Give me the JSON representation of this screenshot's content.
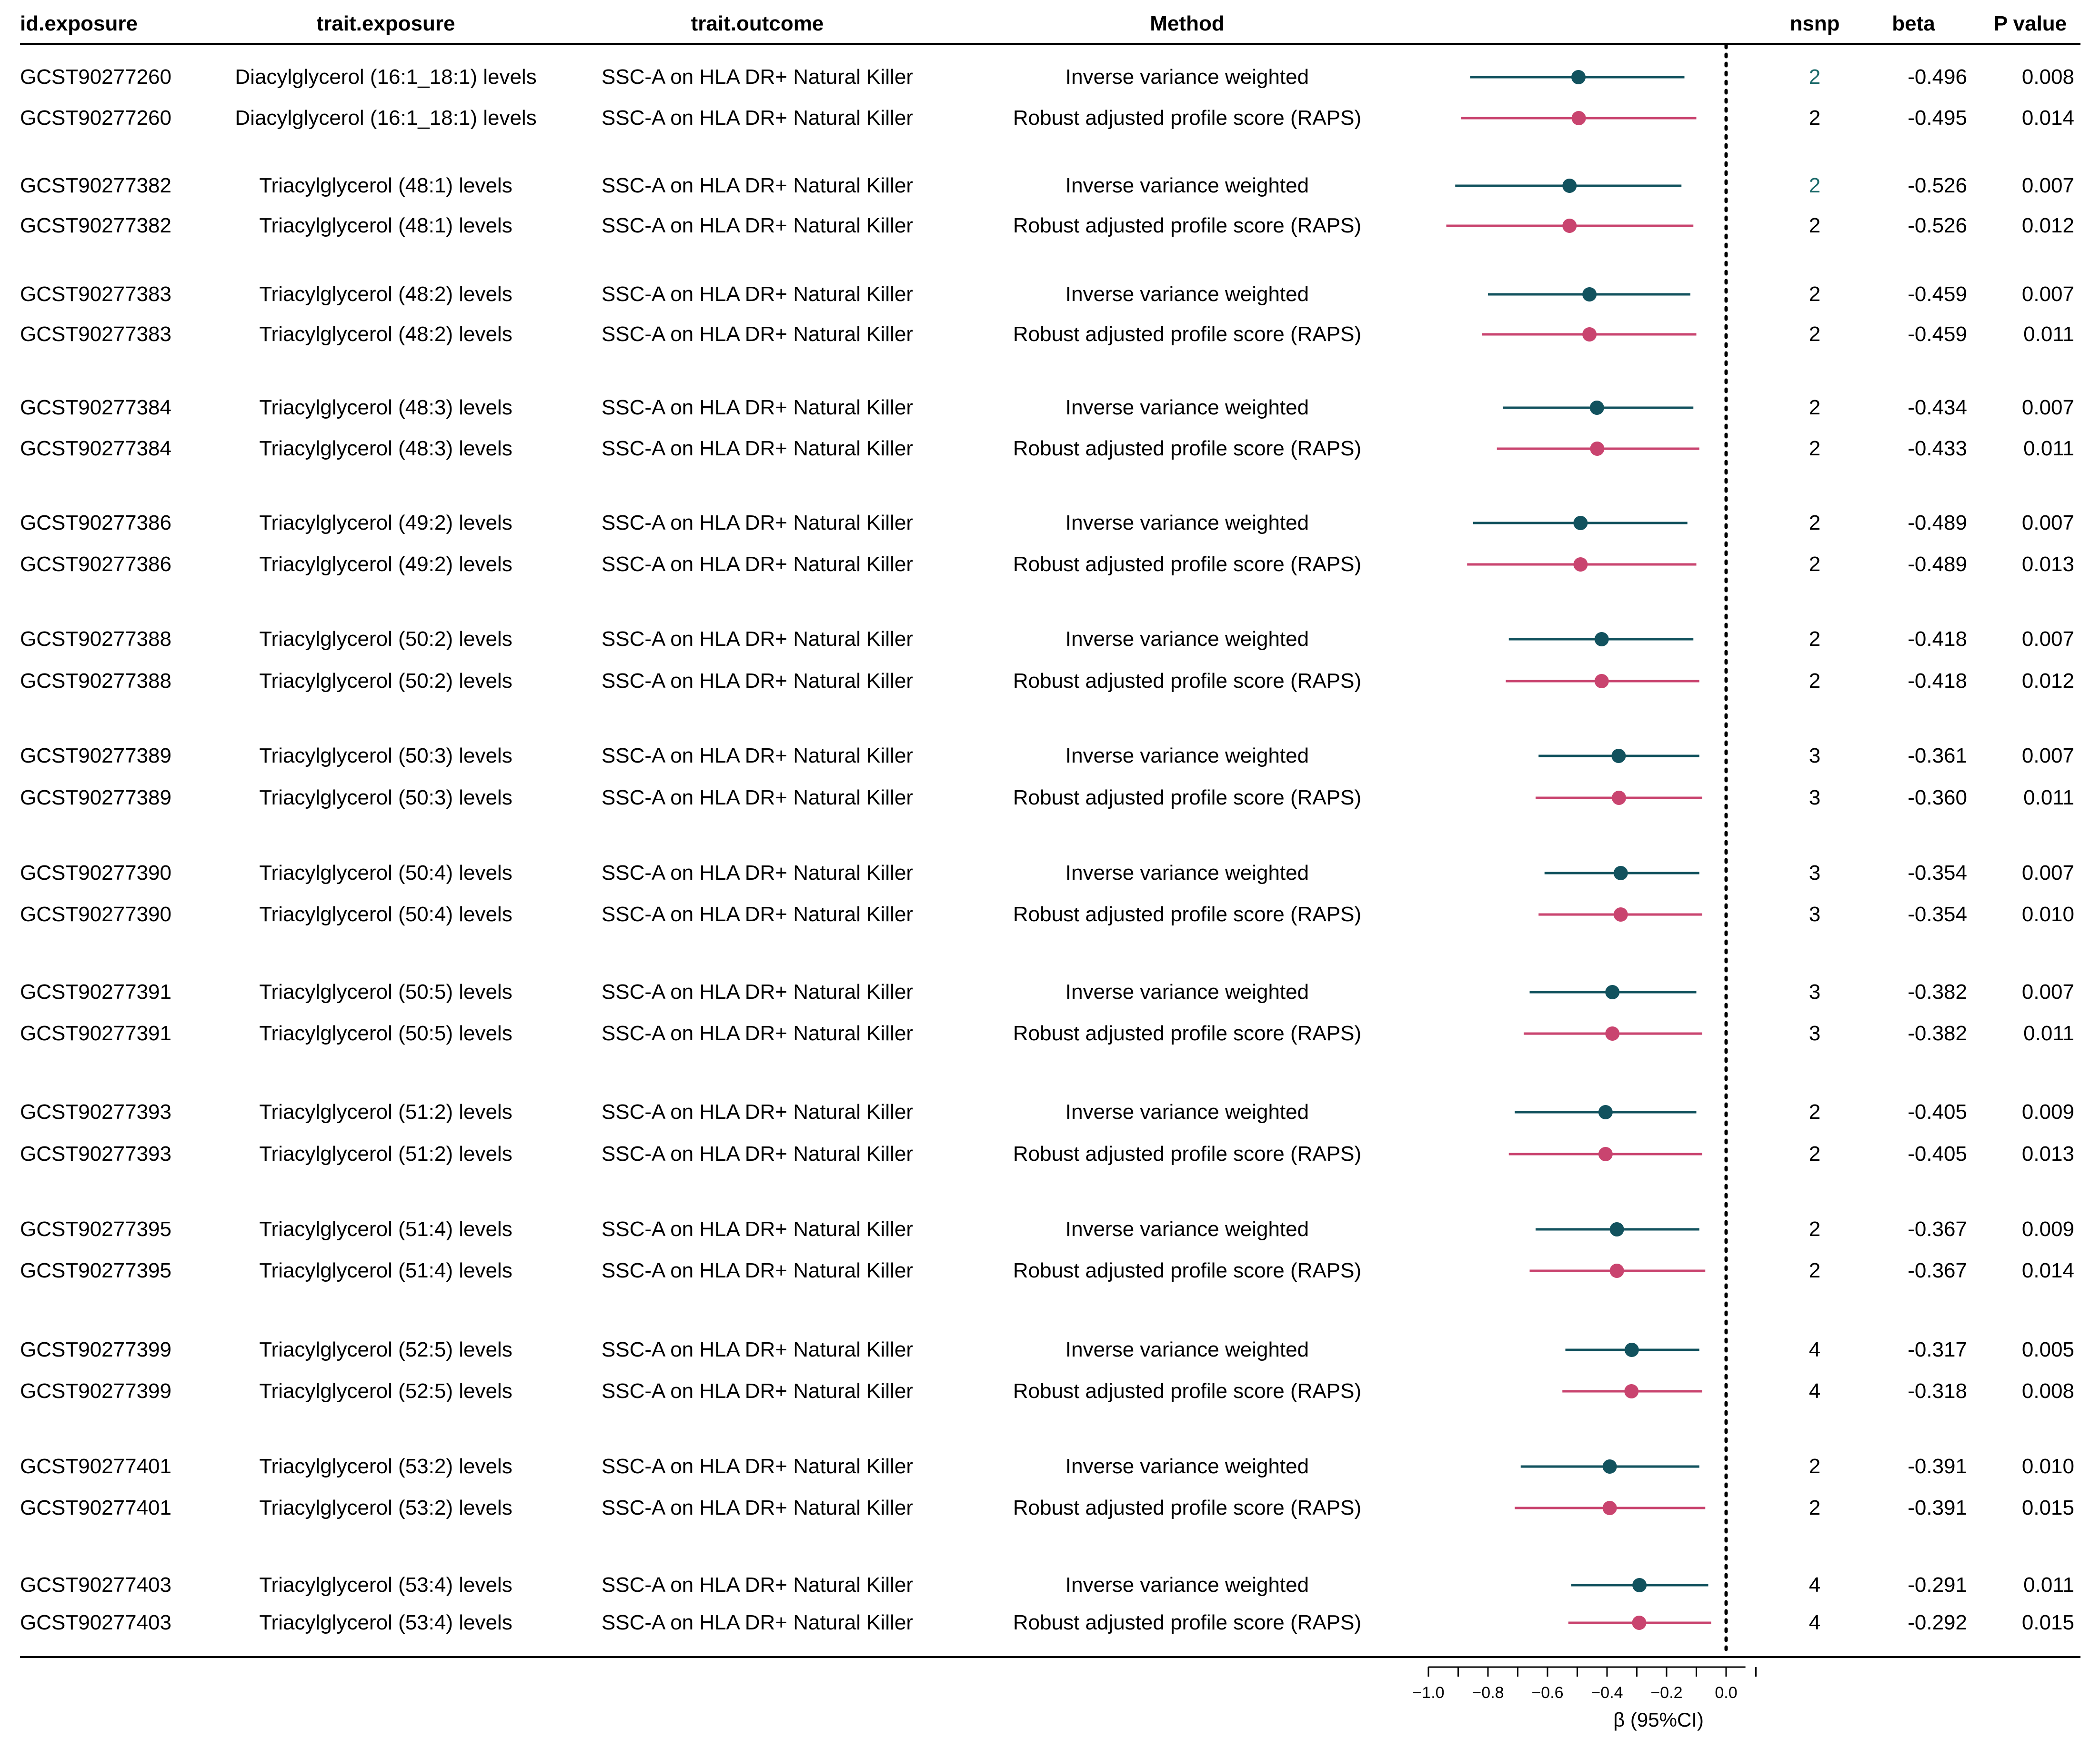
{
  "columns": {
    "id": "id.exposure",
    "exposure": "trait.exposure",
    "outcome": "trait.outcome",
    "method": "Method",
    "nsnp": "nsnp",
    "beta": "beta",
    "p": "P value"
  },
  "colors": {
    "ivw": "#12525e",
    "raps": "#c9446f",
    "nsnp_highlight": "#1e6b6b",
    "text": "#000000"
  },
  "rows": [
    {
      "id": "GCST90277260",
      "exposure": "Diacylglycerol (16:1_18:1) levels",
      "outcome": "SSC-A on HLA DR+ Natural Killer",
      "method": "Inverse variance weighted",
      "nsnp": "2",
      "beta": "-0.496",
      "p": "0.008",
      "ci": [
        -0.86,
        -0.14
      ],
      "series": "ivw",
      "highlight_nsnp": true
    },
    {
      "id": "GCST90277260",
      "exposure": "Diacylglycerol (16:1_18:1) levels",
      "outcome": "SSC-A on HLA DR+ Natural Killer",
      "method": "Robust adjusted profile score (RAPS)",
      "nsnp": "2",
      "beta": "-0.495",
      "p": "0.014",
      "ci": [
        -0.89,
        -0.1
      ],
      "series": "raps",
      "highlight_nsnp": false
    },
    {
      "id": "GCST90277382",
      "exposure": "Triacylglycerol (48:1) levels",
      "outcome": "SSC-A on HLA DR+ Natural Killer",
      "method": "Inverse variance weighted",
      "nsnp": "2",
      "beta": "-0.526",
      "p": "0.007",
      "ci": [
        -0.91,
        -0.15
      ],
      "series": "ivw",
      "highlight_nsnp": true
    },
    {
      "id": "GCST90277382",
      "exposure": "Triacylglycerol (48:1) levels",
      "outcome": "SSC-A on HLA DR+ Natural Killer",
      "method": "Robust adjusted profile score (RAPS)",
      "nsnp": "2",
      "beta": "-0.526",
      "p": "0.012",
      "ci": [
        -0.94,
        -0.11
      ],
      "series": "raps",
      "highlight_nsnp": false
    },
    {
      "id": "GCST90277383",
      "exposure": "Triacylglycerol (48:2) levels",
      "outcome": "SSC-A on HLA DR+ Natural Killer",
      "method": "Inverse variance weighted",
      "nsnp": "2",
      "beta": "-0.459",
      "p": "0.007",
      "ci": [
        -0.8,
        -0.12
      ],
      "series": "ivw",
      "highlight_nsnp": false
    },
    {
      "id": "GCST90277383",
      "exposure": "Triacylglycerol (48:2) levels",
      "outcome": "SSC-A on HLA DR+ Natural Killer",
      "method": "Robust adjusted profile score (RAPS)",
      "nsnp": "2",
      "beta": "-0.459",
      "p": "0.011",
      "ci": [
        -0.82,
        -0.1
      ],
      "series": "raps",
      "highlight_nsnp": false
    },
    {
      "id": "GCST90277384",
      "exposure": "Triacylglycerol (48:3) levels",
      "outcome": "SSC-A on HLA DR+ Natural Killer",
      "method": "Inverse variance weighted",
      "nsnp": "2",
      "beta": "-0.434",
      "p": "0.007",
      "ci": [
        -0.75,
        -0.11
      ],
      "series": "ivw",
      "highlight_nsnp": false
    },
    {
      "id": "GCST90277384",
      "exposure": "Triacylglycerol (48:3) levels",
      "outcome": "SSC-A on HLA DR+ Natural Killer",
      "method": "Robust adjusted profile score (RAPS)",
      "nsnp": "2",
      "beta": "-0.433",
      "p": "0.011",
      "ci": [
        -0.77,
        -0.09
      ],
      "series": "raps",
      "highlight_nsnp": false
    },
    {
      "id": "GCST90277386",
      "exposure": "Triacylglycerol (49:2) levels",
      "outcome": "SSC-A on HLA DR+ Natural Killer",
      "method": "Inverse variance weighted",
      "nsnp": "2",
      "beta": "-0.489",
      "p": "0.007",
      "ci": [
        -0.85,
        -0.13
      ],
      "series": "ivw",
      "highlight_nsnp": false
    },
    {
      "id": "GCST90277386",
      "exposure": "Triacylglycerol (49:2) levels",
      "outcome": "SSC-A on HLA DR+ Natural Killer",
      "method": "Robust adjusted profile score (RAPS)",
      "nsnp": "2",
      "beta": "-0.489",
      "p": "0.013",
      "ci": [
        -0.87,
        -0.1
      ],
      "series": "raps",
      "highlight_nsnp": false
    },
    {
      "id": "GCST90277388",
      "exposure": "Triacylglycerol (50:2) levels",
      "outcome": "SSC-A on HLA DR+ Natural Killer",
      "method": "Inverse variance weighted",
      "nsnp": "2",
      "beta": "-0.418",
      "p": "0.007",
      "ci": [
        -0.73,
        -0.11
      ],
      "series": "ivw",
      "highlight_nsnp": false
    },
    {
      "id": "GCST90277388",
      "exposure": "Triacylglycerol (50:2) levels",
      "outcome": "SSC-A on HLA DR+ Natural Killer",
      "method": "Robust adjusted profile score (RAPS)",
      "nsnp": "2",
      "beta": "-0.418",
      "p": "0.012",
      "ci": [
        -0.74,
        -0.09
      ],
      "series": "raps",
      "highlight_nsnp": false
    },
    {
      "id": "GCST90277389",
      "exposure": "Triacylglycerol (50:3) levels",
      "outcome": "SSC-A on HLA DR+ Natural Killer",
      "method": "Inverse variance weighted",
      "nsnp": "3",
      "beta": "-0.361",
      "p": "0.007",
      "ci": [
        -0.63,
        -0.09
      ],
      "series": "ivw",
      "highlight_nsnp": false
    },
    {
      "id": "GCST90277389",
      "exposure": "Triacylglycerol (50:3) levels",
      "outcome": "SSC-A on HLA DR+ Natural Killer",
      "method": "Robust adjusted profile score (RAPS)",
      "nsnp": "3",
      "beta": "-0.360",
      "p": "0.011",
      "ci": [
        -0.64,
        -0.08
      ],
      "series": "raps",
      "highlight_nsnp": false
    },
    {
      "id": "GCST90277390",
      "exposure": "Triacylglycerol (50:4) levels",
      "outcome": "SSC-A on HLA DR+ Natural Killer",
      "method": "Inverse variance weighted",
      "nsnp": "3",
      "beta": "-0.354",
      "p": "0.007",
      "ci": [
        -0.61,
        -0.09
      ],
      "series": "ivw",
      "highlight_nsnp": false
    },
    {
      "id": "GCST90277390",
      "exposure": "Triacylglycerol (50:4) levels",
      "outcome": "SSC-A on HLA DR+ Natural Killer",
      "method": "Robust adjusted profile score (RAPS)",
      "nsnp": "3",
      "beta": "-0.354",
      "p": "0.010",
      "ci": [
        -0.63,
        -0.08
      ],
      "series": "raps",
      "highlight_nsnp": false
    },
    {
      "id": "GCST90277391",
      "exposure": "Triacylglycerol (50:5) levels",
      "outcome": "SSC-A on HLA DR+ Natural Killer",
      "method": "Inverse variance weighted",
      "nsnp": "3",
      "beta": "-0.382",
      "p": "0.007",
      "ci": [
        -0.66,
        -0.1
      ],
      "series": "ivw",
      "highlight_nsnp": false
    },
    {
      "id": "GCST90277391",
      "exposure": "Triacylglycerol (50:5) levels",
      "outcome": "SSC-A on HLA DR+ Natural Killer",
      "method": "Robust adjusted profile score (RAPS)",
      "nsnp": "3",
      "beta": "-0.382",
      "p": "0.011",
      "ci": [
        -0.68,
        -0.08
      ],
      "series": "raps",
      "highlight_nsnp": false
    },
    {
      "id": "GCST90277393",
      "exposure": "Triacylglycerol (51:2) levels",
      "outcome": "SSC-A on HLA DR+ Natural Killer",
      "method": "Inverse variance weighted",
      "nsnp": "2",
      "beta": "-0.405",
      "p": "0.009",
      "ci": [
        -0.71,
        -0.1
      ],
      "series": "ivw",
      "highlight_nsnp": false
    },
    {
      "id": "GCST90277393",
      "exposure": "Triacylglycerol (51:2) levels",
      "outcome": "SSC-A on HLA DR+ Natural Killer",
      "method": "Robust adjusted profile score (RAPS)",
      "nsnp": "2",
      "beta": "-0.405",
      "p": "0.013",
      "ci": [
        -0.73,
        -0.08
      ],
      "series": "raps",
      "highlight_nsnp": false
    },
    {
      "id": "GCST90277395",
      "exposure": "Triacylglycerol (51:4) levels",
      "outcome": "SSC-A on HLA DR+ Natural Killer",
      "method": "Inverse variance weighted",
      "nsnp": "2",
      "beta": "-0.367",
      "p": "0.009",
      "ci": [
        -0.64,
        -0.09
      ],
      "series": "ivw",
      "highlight_nsnp": false
    },
    {
      "id": "GCST90277395",
      "exposure": "Triacylglycerol (51:4) levels",
      "outcome": "SSC-A on HLA DR+ Natural Killer",
      "method": "Robust adjusted profile score (RAPS)",
      "nsnp": "2",
      "beta": "-0.367",
      "p": "0.014",
      "ci": [
        -0.66,
        -0.07
      ],
      "series": "raps",
      "highlight_nsnp": false
    },
    {
      "id": "GCST90277399",
      "exposure": "Triacylglycerol (52:5) levels",
      "outcome": "SSC-A on HLA DR+ Natural Killer",
      "method": "Inverse variance weighted",
      "nsnp": "4",
      "beta": "-0.317",
      "p": "0.005",
      "ci": [
        -0.54,
        -0.09
      ],
      "series": "ivw",
      "highlight_nsnp": false
    },
    {
      "id": "GCST90277399",
      "exposure": "Triacylglycerol (52:5) levels",
      "outcome": "SSC-A on HLA DR+ Natural Killer",
      "method": "Robust adjusted profile score (RAPS)",
      "nsnp": "4",
      "beta": "-0.318",
      "p": "0.008",
      "ci": [
        -0.55,
        -0.08
      ],
      "series": "raps",
      "highlight_nsnp": false
    },
    {
      "id": "GCST90277401",
      "exposure": "Triacylglycerol (53:2) levels",
      "outcome": "SSC-A on HLA DR+ Natural Killer",
      "method": "Inverse variance weighted",
      "nsnp": "2",
      "beta": "-0.391",
      "p": "0.010",
      "ci": [
        -0.69,
        -0.09
      ],
      "series": "ivw",
      "highlight_nsnp": false
    },
    {
      "id": "GCST90277401",
      "exposure": "Triacylglycerol (53:2) levels",
      "outcome": "SSC-A on HLA DR+ Natural Killer",
      "method": "Robust adjusted profile score (RAPS)",
      "nsnp": "2",
      "beta": "-0.391",
      "p": "0.015",
      "ci": [
        -0.71,
        -0.07
      ],
      "series": "raps",
      "highlight_nsnp": false
    },
    {
      "id": "GCST90277403",
      "exposure": "Triacylglycerol (53:4) levels",
      "outcome": "SSC-A on HLA DR+ Natural Killer",
      "method": "Inverse variance weighted",
      "nsnp": "4",
      "beta": "-0.291",
      "p": "0.011",
      "ci": [
        -0.52,
        -0.06
      ],
      "series": "ivw",
      "highlight_nsnp": false
    },
    {
      "id": "GCST90277403",
      "exposure": "Triacylglycerol (53:4) levels",
      "outcome": "SSC-A on HLA DR+ Natural Killer",
      "method": "Robust adjusted profile score (RAPS)",
      "nsnp": "4",
      "beta": "-0.292",
      "p": "0.015",
      "ci": [
        -0.53,
        -0.05
      ],
      "series": "raps",
      "highlight_nsnp": false
    }
  ],
  "chart_data": {
    "type": "forest",
    "xlabel": "β (95%CI)",
    "xlim": [
      -1.0,
      0.05
    ],
    "ticks": [
      -1.0,
      -0.9,
      -0.8,
      -0.7,
      -0.6,
      -0.5,
      -0.4,
      -0.3,
      -0.2,
      -0.1,
      0.0,
      0.1
    ],
    "tick_labels": [
      {
        "value": -1.0,
        "label": "−1.0"
      },
      {
        "value": -0.8,
        "label": "−0.8"
      },
      {
        "value": -0.6,
        "label": "−0.6"
      },
      {
        "value": -0.4,
        "label": "−0.4"
      },
      {
        "value": -0.2,
        "label": "−0.2"
      },
      {
        "value": 0.0,
        "label": "0.0"
      }
    ],
    "reference_line": 0,
    "series": [
      {
        "name": "Inverse variance weighted",
        "color": "#12525e"
      },
      {
        "name": "Robust adjusted profile score (RAPS)",
        "color": "#c9446f"
      }
    ]
  }
}
